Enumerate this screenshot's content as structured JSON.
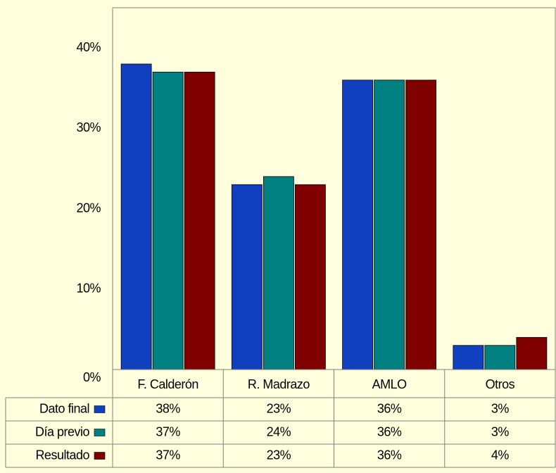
{
  "chart_data": {
    "type": "bar",
    "categories": [
      "F. Calderón",
      "R. Madrazo",
      "AMLO",
      "Otros"
    ],
    "series": [
      {
        "name": "Dato final",
        "color": "#1040c0",
        "values": [
          38,
          23,
          36,
          3
        ],
        "value_labels": [
          "38%",
          "23%",
          "36%",
          "3%"
        ]
      },
      {
        "name": "Día previo",
        "color": "#008080",
        "values": [
          37,
          24,
          36,
          3
        ],
        "value_labels": [
          "37%",
          "24%",
          "36%",
          "3%"
        ]
      },
      {
        "name": "Resultado",
        "color": "#800000",
        "values": [
          37,
          23,
          36,
          4
        ],
        "value_labels": [
          "37%",
          "23%",
          "36%",
          "4%"
        ]
      }
    ],
    "ylim": [
      0,
      45
    ],
    "yticks": [
      {
        "value": 0,
        "label": "0%"
      },
      {
        "value": 10,
        "label": "10%"
      },
      {
        "value": 20,
        "label": "20%"
      },
      {
        "value": 30,
        "label": "30%"
      },
      {
        "value": 40,
        "label": "40%"
      }
    ],
    "grid": false
  }
}
